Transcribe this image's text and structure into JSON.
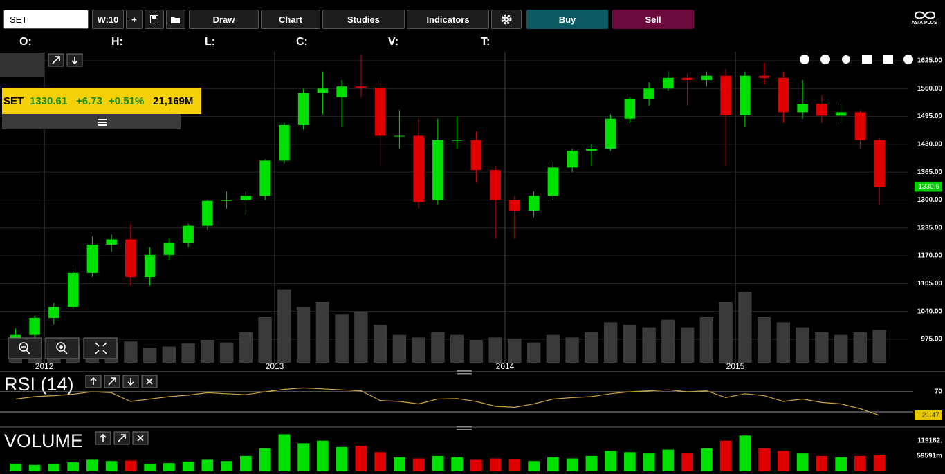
{
  "toolbar": {
    "symbol": "SET",
    "interval": "W:10",
    "add": "+",
    "draw": "Draw",
    "chart": "Chart",
    "studies": "Studies",
    "indicators": "Indicators",
    "buy": "Buy",
    "sell": "Sell",
    "logo": "ASIA PLUS"
  },
  "ohlc_labels": [
    "O:",
    "H:",
    "L:",
    "C:",
    "V:",
    "T:"
  ],
  "quote": {
    "symbol": "SET",
    "last": "1330.61",
    "change": "+6.73",
    "change_pct": "+0.51%",
    "volume": "21,169M"
  },
  "chart_data": [
    {
      "type": "candlestick",
      "title": "SET",
      "categories": [
        null,
        null,
        "2012",
        null,
        null,
        null,
        null,
        null,
        null,
        null,
        null,
        null,
        null,
        null,
        "2013",
        null,
        null,
        null,
        null,
        null,
        null,
        null,
        null,
        null,
        null,
        null,
        "2014",
        null,
        null,
        null,
        null,
        null,
        null,
        null,
        null,
        null,
        null,
        null,
        "2015",
        null,
        null,
        null,
        null,
        null,
        null,
        null
      ],
      "open": [
        960,
        985,
        1025,
        1050,
        1130,
        1196,
        1208,
        1120,
        1172,
        1200,
        1240,
        1298,
        1300,
        1310,
        1392,
        1475,
        1550,
        1540,
        1565,
        1562,
        1450,
        1450,
        1300,
        1440,
        1440,
        1370,
        1300,
        1275,
        1310,
        1376,
        1415,
        1420,
        1490,
        1535,
        1560,
        1585,
        1580,
        1590,
        1498,
        1590,
        1585,
        1505,
        1525,
        1497,
        1505,
        1440
      ],
      "high": [
        1000,
        1030,
        1060,
        1140,
        1215,
        1220,
        1245,
        1190,
        1210,
        1245,
        1300,
        1320,
        1320,
        1395,
        1480,
        1560,
        1600,
        1580,
        1640,
        1580,
        1510,
        1490,
        1490,
        1495,
        1460,
        1380,
        1310,
        1320,
        1390,
        1420,
        1430,
        1500,
        1540,
        1575,
        1600,
        1595,
        1600,
        1605,
        1600,
        1620,
        1600,
        1580,
        1545,
        1525,
        1510,
        1445
      ],
      "low": [
        930,
        970,
        1010,
        1045,
        1120,
        1180,
        1100,
        1100,
        1160,
        1190,
        1230,
        1280,
        1265,
        1300,
        1385,
        1465,
        1500,
        1470,
        1540,
        1380,
        1420,
        1280,
        1290,
        1420,
        1340,
        1210,
        1210,
        1260,
        1300,
        1365,
        1380,
        1415,
        1480,
        1520,
        1555,
        1520,
        1565,
        1380,
        1470,
        1570,
        1480,
        1490,
        1480,
        1480,
        1420,
        1290
      ],
      "close": [
        985,
        1025,
        1050,
        1130,
        1196,
        1208,
        1120,
        1172,
        1200,
        1240,
        1298,
        1300,
        1310,
        1392,
        1475,
        1550,
        1560,
        1565,
        1562,
        1450,
        1450,
        1295,
        1440,
        1440,
        1370,
        1300,
        1275,
        1310,
        1376,
        1415,
        1420,
        1490,
        1535,
        1560,
        1585,
        1580,
        1590,
        1498,
        1590,
        1585,
        1505,
        1525,
        1497,
        1505,
        1440,
        1330.61
      ],
      "up_color": "#00e000",
      "down_color": "#e00000",
      "ylim": [
        920,
        1646
      ],
      "yticks": [
        {
          "value": 975,
          "label": "975.00"
        },
        {
          "value": 1040,
          "label": "1040.00"
        },
        {
          "value": 1105,
          "label": "1105.00"
        },
        {
          "value": 1170,
          "label": "1170.00"
        },
        {
          "value": 1235,
          "label": "1235.00"
        },
        {
          "value": 1300,
          "label": "1300.00"
        },
        {
          "value": 1365,
          "label": "1365.00"
        },
        {
          "value": 1430,
          "label": "1430.00"
        },
        {
          "value": 1495,
          "label": "1495.00"
        },
        {
          "value": 1560,
          "label": "1560.00"
        },
        {
          "value": 1625,
          "label": "1625.00"
        }
      ],
      "grid": true,
      "last_label": {
        "value": 1330.61,
        "label": "1330.6"
      }
    },
    {
      "type": "line",
      "title": "RSI (14)",
      "values": [
        55,
        60,
        62,
        65,
        70,
        68,
        50,
        55,
        60,
        63,
        68,
        66,
        64,
        70,
        75,
        78,
        76,
        74,
        72,
        52,
        50,
        45,
        55,
        56,
        50,
        40,
        38,
        45,
        55,
        58,
        60,
        66,
        70,
        72,
        74,
        70,
        72,
        58,
        66,
        62,
        50,
        55,
        48,
        45,
        35,
        21.47
      ],
      "color": "#c9a640",
      "ylim": [
        0,
        100
      ],
      "yticks": [
        70
      ],
      "grid": true,
      "last_label": {
        "value": 21.47,
        "label": "21.47"
      }
    },
    {
      "type": "bar",
      "title": "VOLUME",
      "values": [
        30000,
        25000,
        28000,
        35000,
        45000,
        40000,
        42000,
        30000,
        32000,
        38000,
        45000,
        40000,
        60000,
        90000,
        145000,
        110000,
        120000,
        95000,
        100000,
        75000,
        55000,
        50000,
        60000,
        55000,
        45000,
        50000,
        48000,
        40000,
        55000,
        50000,
        60000,
        80000,
        75000,
        70000,
        85000,
        70000,
        90000,
        120000,
        140000,
        90000,
        80000,
        70000,
        60000,
        55000,
        60000,
        65000
      ],
      "ylim": [
        0,
        150000
      ],
      "yticks": [
        {
          "value": 59591,
          "label": "59591m"
        },
        {
          "value": 119182,
          "label": "119182."
        }
      ]
    }
  ]
}
